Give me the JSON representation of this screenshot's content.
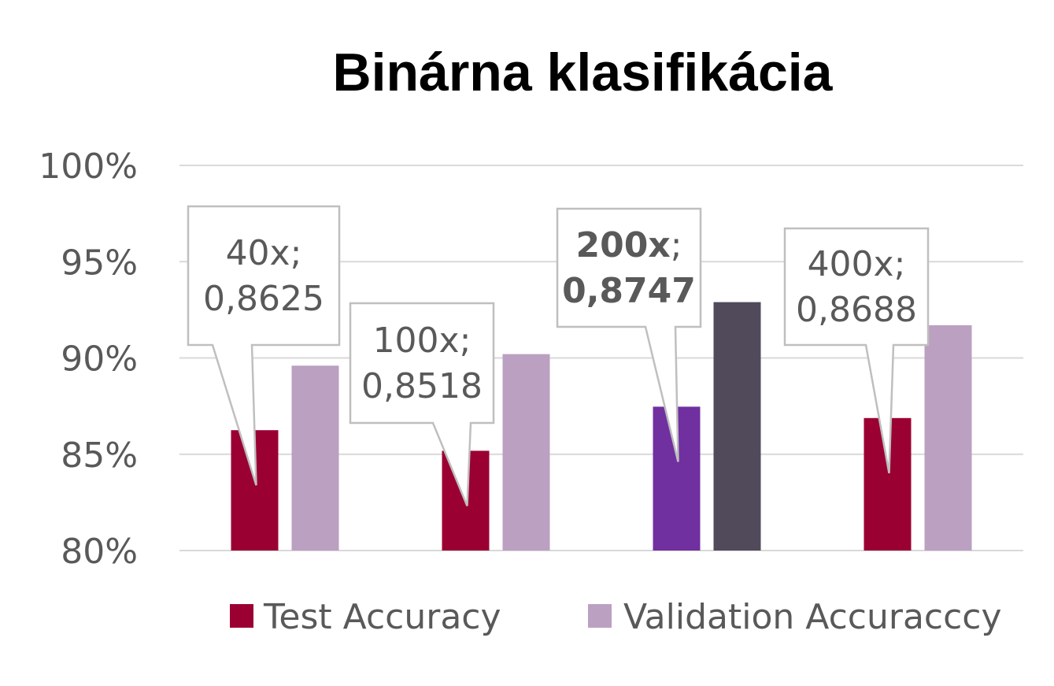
{
  "chart_data": {
    "type": "bar",
    "title": "Binárna klasifikácia",
    "categories": [
      "40x",
      "100x",
      "200x",
      "400x"
    ],
    "series": [
      {
        "name": "Test Accuracy",
        "color": "#9b0033",
        "values": [
          0.8625,
          0.8518,
          0.8747,
          0.8688
        ]
      },
      {
        "name": "Validation Accuracccy",
        "color": "#bba0c1",
        "values": [
          0.896,
          0.902,
          0.929,
          0.917
        ]
      }
    ],
    "highlight": {
      "category_index": 2,
      "colors": {
        "Test Accuracy": "#7030a0",
        "Validation Accuracccy": "#514a5b"
      }
    },
    "ylim": [
      0.8,
      1.0
    ],
    "yticks": [
      0.8,
      0.85,
      0.9,
      0.95,
      1.0
    ],
    "ytick_labels": [
      "80%",
      "85%",
      "90%",
      "95%",
      "100%"
    ],
    "grid": true,
    "legend_position": "bottom",
    "data_labels": [
      {
        "category": "40x",
        "line1": "40x;",
        "line2": "0,8625",
        "bold": false
      },
      {
        "category": "100x",
        "line1": "100x;",
        "line2": "0,8518",
        "bold": false
      },
      {
        "category": "200x",
        "line1": "200x",
        "line1_suffix": ";",
        "line2": "0,8747",
        "bold": true
      },
      {
        "category": "400x",
        "line1": "400x;",
        "line2": "0,8688",
        "bold": false
      }
    ]
  }
}
